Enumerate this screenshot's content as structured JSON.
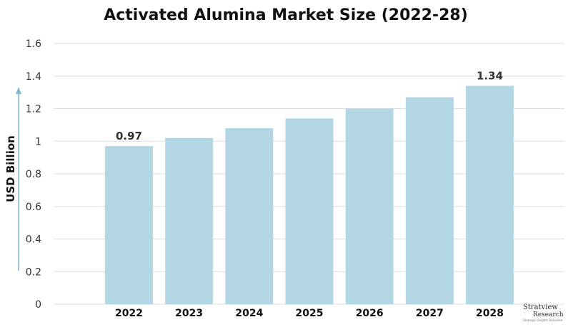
{
  "chart_data": {
    "type": "bar",
    "title": "Activated Alumina Market Size (2022-28)",
    "xlabel": "",
    "ylabel": "USD Billion",
    "categories": [
      "2022",
      "2023",
      "2024",
      "2025",
      "2026",
      "2027",
      "2028"
    ],
    "values": [
      0.97,
      1.02,
      1.08,
      1.14,
      1.2,
      1.27,
      1.34
    ],
    "data_labels": [
      {
        "category": "2022",
        "text": "0.97"
      },
      {
        "category": "2028",
        "text": "1.34"
      }
    ],
    "ylim": [
      0,
      1.6
    ],
    "yticks": [
      "0",
      "0.2",
      "0.4",
      "0.6",
      "0.8",
      "1",
      "1.2",
      "1.4",
      "1.6"
    ],
    "grid": true,
    "bar_color": "#b3d6e4",
    "grid_color": "#dddddd",
    "axis_arrow_color": "#7eb7d0"
  },
  "branding": {
    "name_top": "Stratview",
    "name_bottom": "Research",
    "tagline": "Strategic Insights Delivered"
  }
}
